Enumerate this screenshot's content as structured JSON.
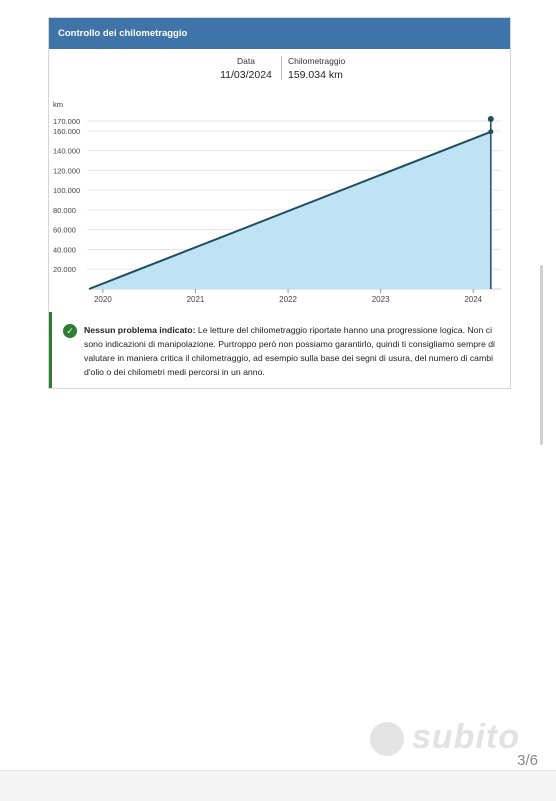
{
  "card": {
    "title": "Controllo dei chilometraggio",
    "date_label": "Data",
    "date_value": "11/03/2024",
    "km_label": "Chilometraggio",
    "km_value": "159.034 km"
  },
  "chart_data": {
    "type": "area",
    "ylabel": "km",
    "y_ticks": [
      "20.000",
      "40.000",
      "60.000",
      "80.000",
      "100.000",
      "120.000",
      "140.000",
      "160.000",
      "170.000"
    ],
    "y_tick_values": [
      20000,
      40000,
      60000,
      80000,
      100000,
      120000,
      140000,
      160000,
      170000
    ],
    "x_ticks": [
      "2020",
      "2021",
      "2022",
      "2023",
      "2024"
    ],
    "x_tick_values": [
      2020,
      2021,
      2022,
      2023,
      2024
    ],
    "xlim": [
      2019.85,
      2024.3
    ],
    "ylim": [
      0,
      175000
    ],
    "series": [
      {
        "x": [
          2019.85,
          2024.19
        ],
        "y": [
          0,
          159034
        ]
      }
    ],
    "markers": [
      {
        "x": 2024.19,
        "y": 159034
      },
      {
        "x": 2024.19,
        "y": 172000
      }
    ],
    "colors": {
      "line": "#1f4e5f",
      "fill": "#bfe3f5",
      "marker": "#1f4e5f"
    }
  },
  "alert": {
    "title": "Nessun problema indicato:",
    "text": " Le letture del chilometraggio riportate hanno una progressione logica. Non ci sono indicazioni di manipolazione. Purtroppo però non possiamo garantirlo, quindi ti consigliamo sempre di valutare in maniera critica il chilometraggio, ad esempio sulla base dei segni di usura, del numero di cambi d'olio o dei chilometri medi percorsi in un anno.",
    "icon": "check-circle-icon"
  },
  "watermark": {
    "text": "subito"
  },
  "pager": {
    "text": "3/6"
  }
}
